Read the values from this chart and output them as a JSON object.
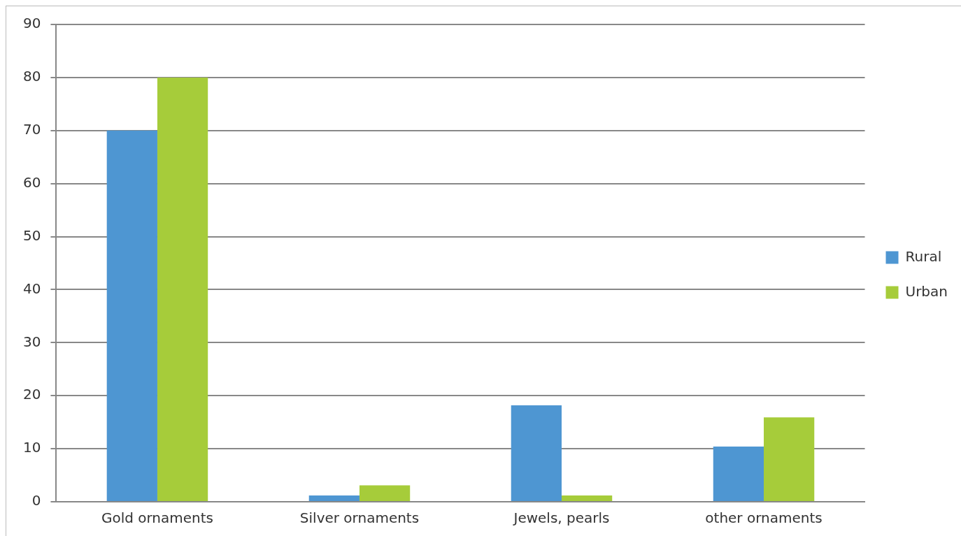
{
  "chart_data": {
    "type": "bar",
    "categories": [
      "Gold ornaments",
      "Silver ornaments",
      "Jewels, pearls",
      "other ornaments"
    ],
    "series": [
      {
        "name": "Rural",
        "color": "#4e96d2",
        "values": [
          70,
          1.2,
          18.2,
          10.4
        ]
      },
      {
        "name": "Urban",
        "color": "#a6cc3a",
        "values": [
          80,
          3.1,
          1.2,
          15.9
        ]
      }
    ],
    "ylim": [
      0,
      90
    ],
    "yticks": [
      0,
      10,
      20,
      30,
      40,
      50,
      60,
      70,
      80,
      90
    ],
    "grid": "y",
    "legend": "right"
  }
}
